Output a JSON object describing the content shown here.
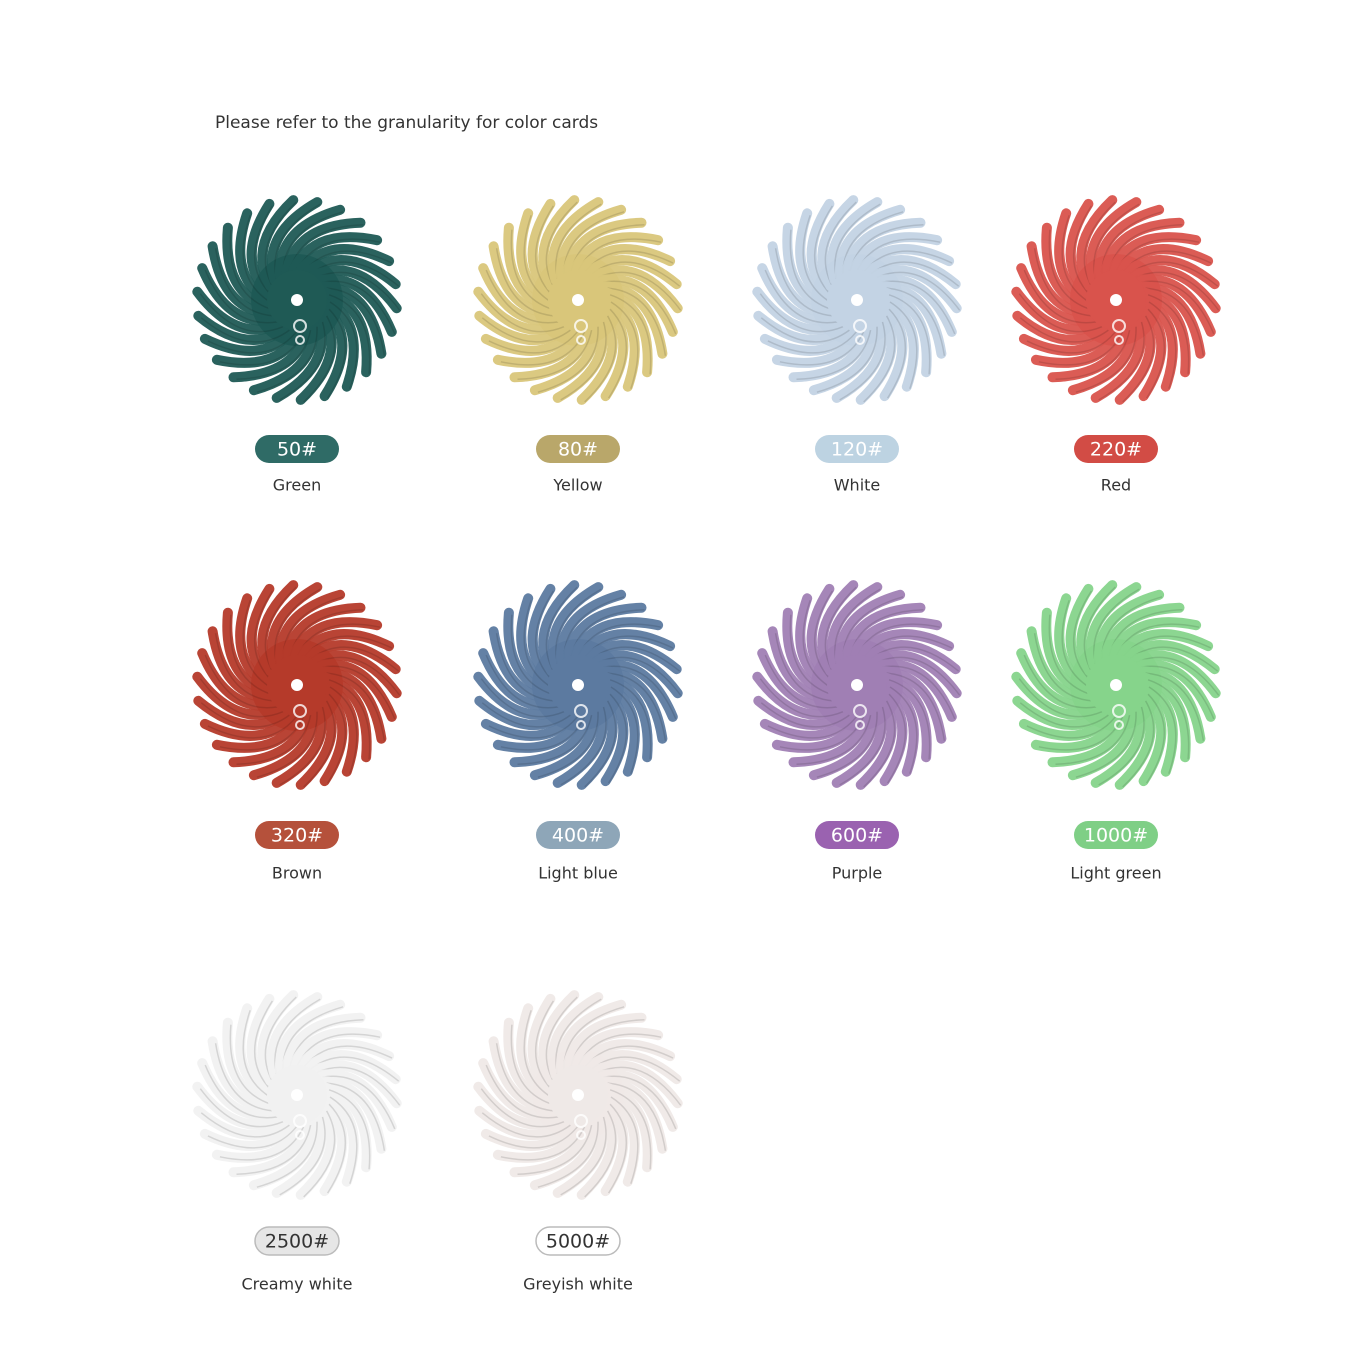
{
  "header": {
    "title": "Please refer to the granularity for color cards"
  },
  "items": [
    {
      "grit": "50#",
      "name": "Green",
      "color": "#1f5a55",
      "pill_color": "#2f6b66",
      "pill_text_color": "#ffffff"
    },
    {
      "grit": "80#",
      "name": "Yellow",
      "color": "#d9c67a",
      "pill_color": "#b9a76a",
      "pill_text_color": "#ffffff"
    },
    {
      "grit": "120#",
      "name": "White",
      "color": "#c3d3e4",
      "pill_color": "#bdd3e2",
      "pill_text_color": "#ffffff"
    },
    {
      "grit": "220#",
      "name": "Red",
      "color": "#d9534c",
      "pill_color": "#d24c45",
      "pill_text_color": "#ffffff"
    },
    {
      "grit": "320#",
      "name": "Brown",
      "color": "#b53a2a",
      "pill_color": "#b5513b",
      "pill_text_color": "#ffffff"
    },
    {
      "grit": "400#",
      "name": "Light blue",
      "color": "#5c7aa0",
      "pill_color": "#8ea6b8",
      "pill_text_color": "#ffffff"
    },
    {
      "grit": "600#",
      "name": "Purple",
      "color": "#a07fb4",
      "pill_color": "#9a62b0",
      "pill_text_color": "#ffffff"
    },
    {
      "grit": "1000#",
      "name": "Light green",
      "color": "#86d48b",
      "pill_color": "#7fcf86",
      "pill_text_color": "#ffffff"
    },
    {
      "grit": "2500#",
      "name": "Creamy white",
      "color": "#f1f1f1",
      "pill_color": "#e6e6e6",
      "pill_text_color": "#333333"
    },
    {
      "grit": "5000#",
      "name": "Greyish white",
      "color": "#efe9e7",
      "pill_color": "#ffffff",
      "pill_text_color": "#333333"
    }
  ]
}
